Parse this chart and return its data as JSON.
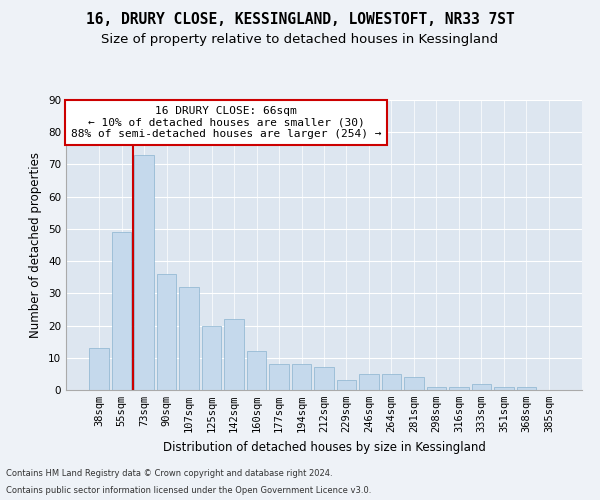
{
  "title1": "16, DRURY CLOSE, KESSINGLAND, LOWESTOFT, NR33 7ST",
  "title2": "Size of property relative to detached houses in Kessingland",
  "xlabel": "Distribution of detached houses by size in Kessingland",
  "ylabel": "Number of detached properties",
  "categories": [
    "38sqm",
    "55sqm",
    "73sqm",
    "90sqm",
    "107sqm",
    "125sqm",
    "142sqm",
    "160sqm",
    "177sqm",
    "194sqm",
    "212sqm",
    "229sqm",
    "246sqm",
    "264sqm",
    "281sqm",
    "298sqm",
    "316sqm",
    "333sqm",
    "351sqm",
    "368sqm",
    "385sqm"
  ],
  "values": [
    13,
    49,
    73,
    36,
    32,
    20,
    22,
    12,
    8,
    8,
    7,
    3,
    5,
    5,
    4,
    1,
    1,
    2,
    1,
    1,
    0
  ],
  "bar_color": "#c5d9ec",
  "bar_edge_color": "#8ab3d0",
  "vline_x": 1.5,
  "vline_color": "#cc0000",
  "annotation_text": "16 DRURY CLOSE: 66sqm\n← 10% of detached houses are smaller (30)\n88% of semi-detached houses are larger (254) →",
  "annotation_box_color": "#ffffff",
  "annotation_box_edge": "#cc0000",
  "ylim": [
    0,
    90
  ],
  "yticks": [
    0,
    10,
    20,
    30,
    40,
    50,
    60,
    70,
    80,
    90
  ],
  "footer1": "Contains HM Land Registry data © Crown copyright and database right 2024.",
  "footer2": "Contains public sector information licensed under the Open Government Licence v3.0.",
  "bg_color": "#eef2f7",
  "plot_bg_color": "#dde6f0",
  "grid_color": "#ffffff",
  "title_fontsize": 10.5,
  "subtitle_fontsize": 9.5,
  "axis_label_fontsize": 8.5,
  "tick_fontsize": 7.5,
  "annotation_fontsize": 8,
  "footer_fontsize": 6.0
}
